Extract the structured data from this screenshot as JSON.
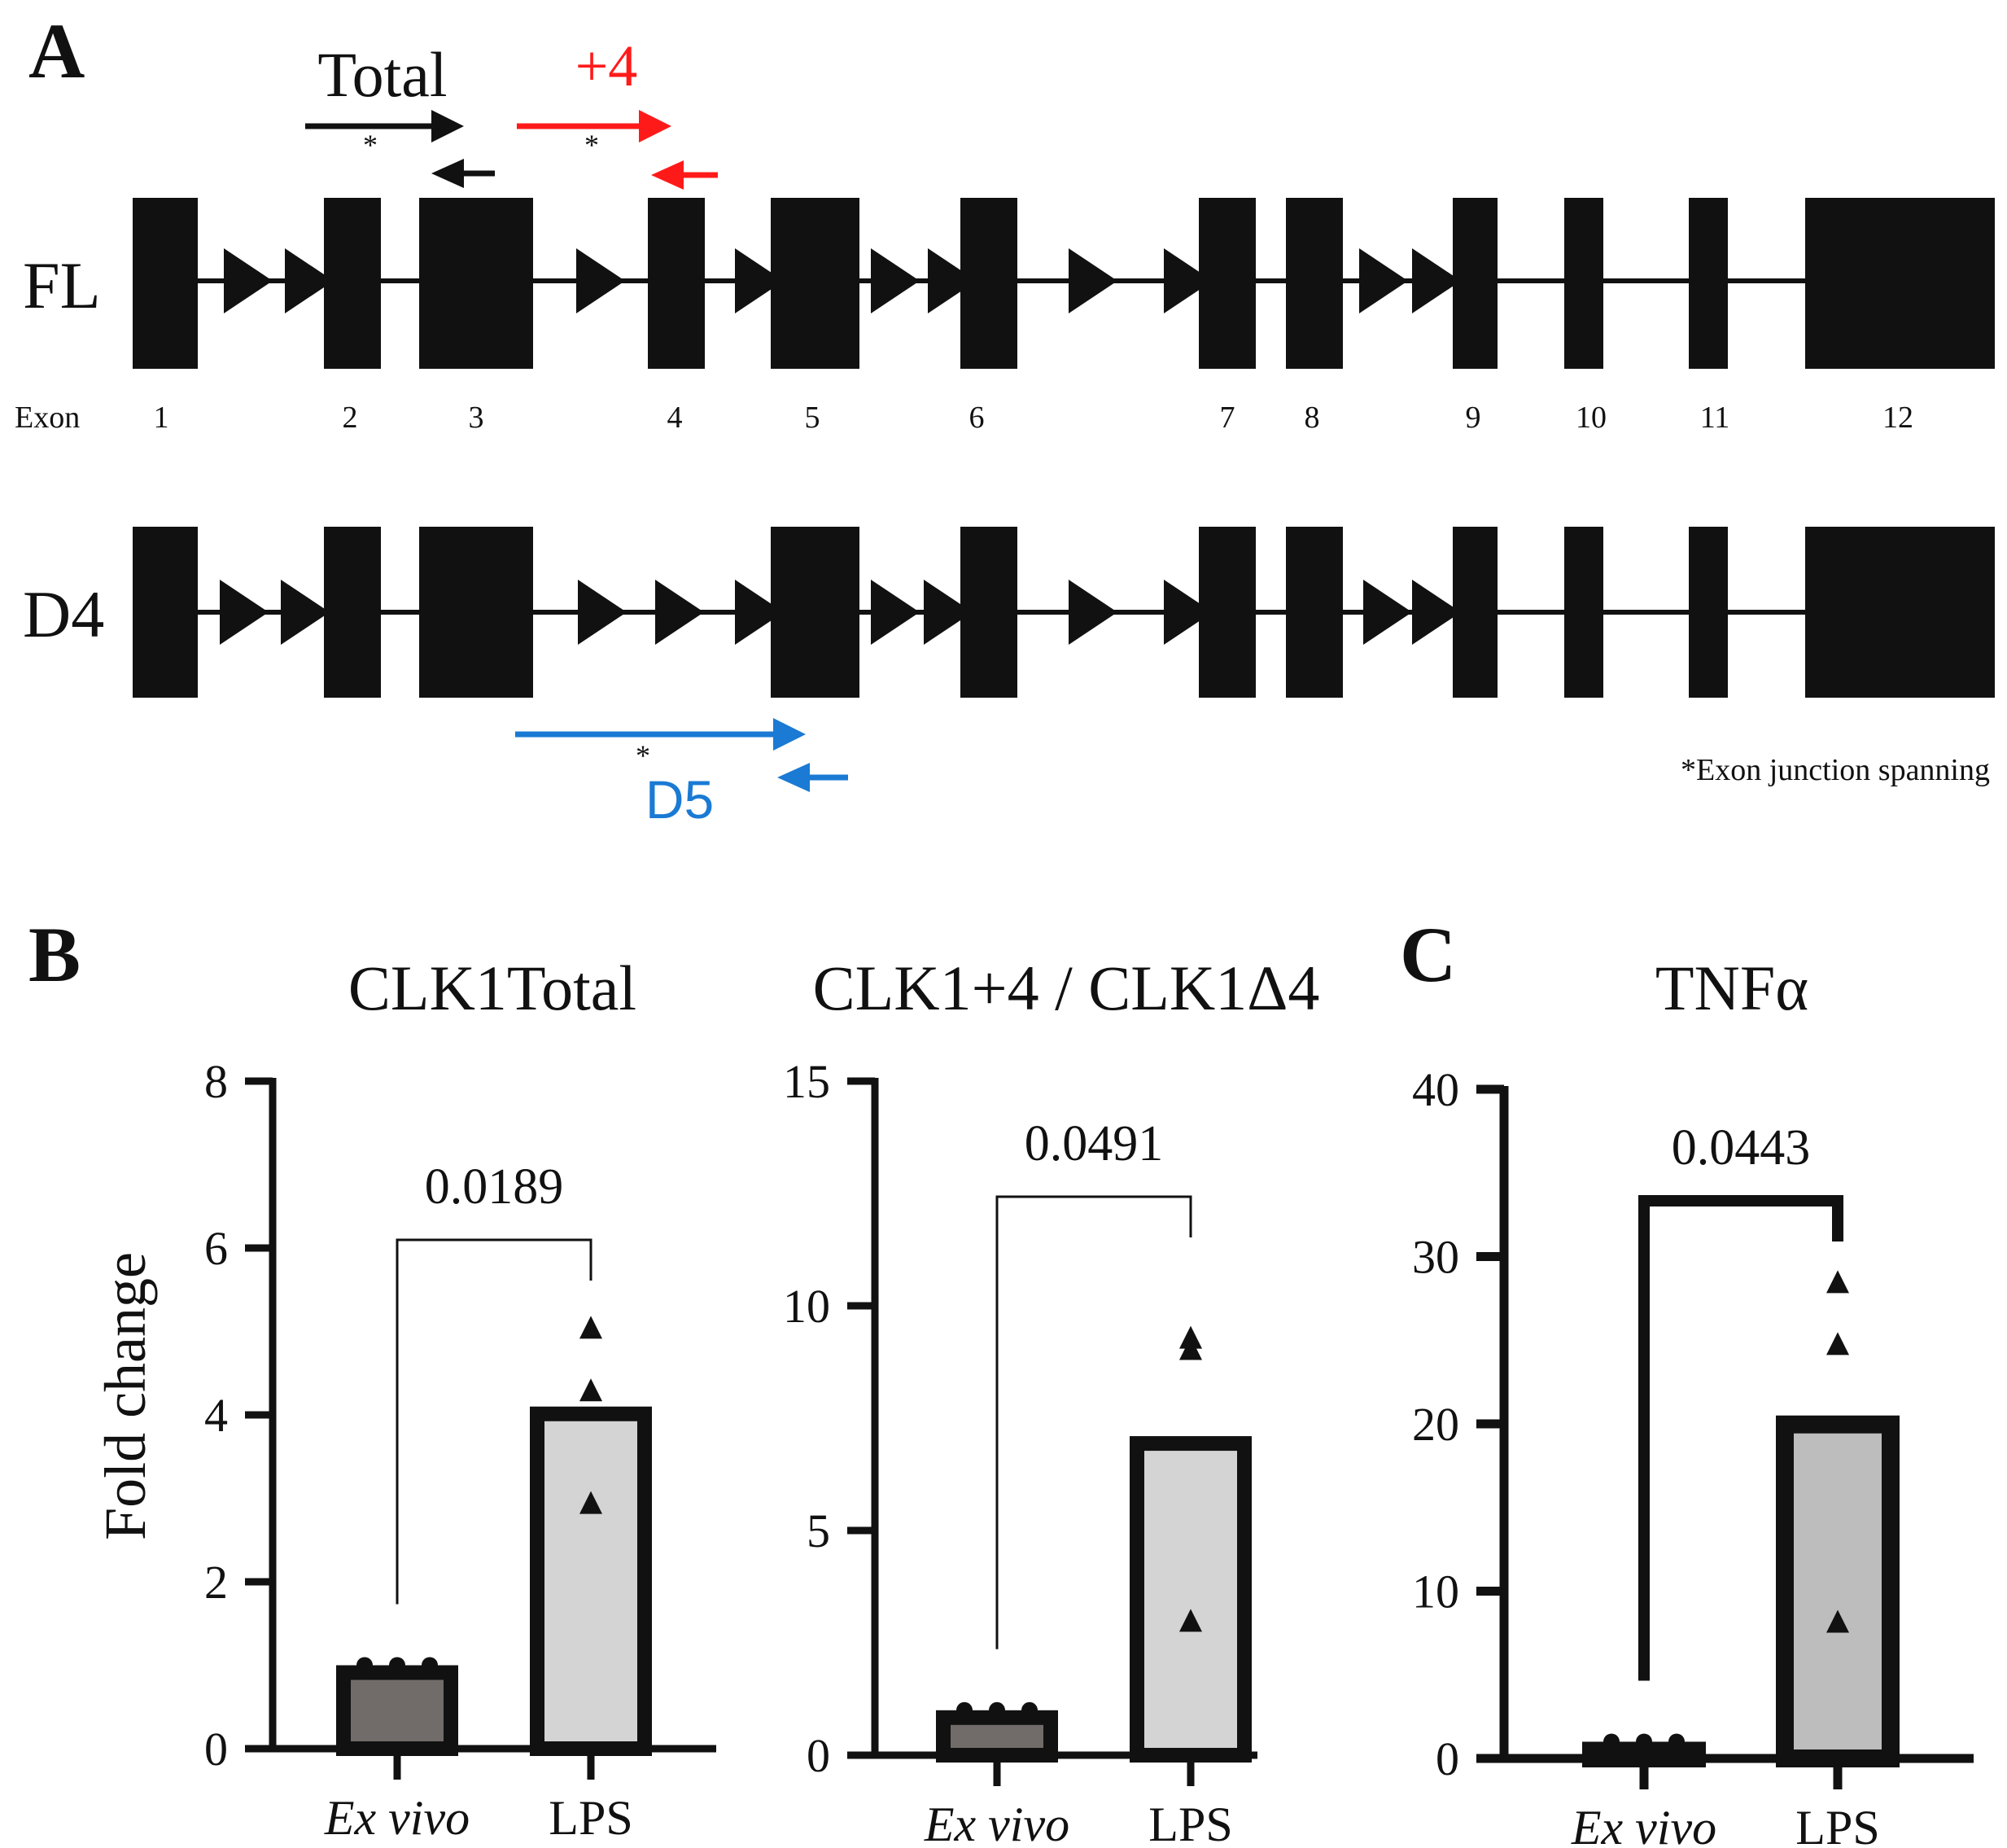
{
  "panel_a": {
    "panel_label": "A",
    "isoforms": [
      {
        "name": "FL",
        "exon_prefix": "Exon",
        "exons": [
          "1",
          "2",
          "3",
          "4",
          "5",
          "6",
          "7",
          "8",
          "9",
          "10",
          "11",
          "12"
        ]
      },
      {
        "name": "D4",
        "skipped_exon": "4"
      }
    ],
    "primers": [
      {
        "label": "Total",
        "marker": "*",
        "color": "#111111"
      },
      {
        "label": "+4",
        "marker": "*",
        "color": "#ff1a1a"
      },
      {
        "label": "D5",
        "marker": "*",
        "color": "#1a7ad4"
      }
    ],
    "footnote": "*Exon junction spanning"
  },
  "panel_labels": {
    "b": "B",
    "c": "C"
  },
  "chart_data": [
    {
      "type": "bar",
      "title": "CLK1Total",
      "ylabel": "Fold change",
      "xlabel": "",
      "categories": [
        "Ex vivo",
        "LPS"
      ],
      "values": [
        1.0,
        4.1
      ],
      "points": [
        [
          1.0,
          1.0,
          1.0
        ],
        [
          5.05,
          4.3,
          2.95
        ]
      ],
      "yticks": [
        "0",
        "2",
        "4",
        "6",
        "8"
      ],
      "ylim": [
        0,
        8
      ],
      "p_value": "0.0189",
      "bar_colors": [
        "#716c69",
        "#d4d4d4"
      ]
    },
    {
      "type": "bar",
      "title": "CLK1+4 / CLK1Δ4",
      "ylabel": "",
      "xlabel": "",
      "categories": [
        "Ex vivo",
        "LPS"
      ],
      "values": [
        1.0,
        7.1
      ],
      "points": [
        [
          1.0,
          1.0,
          1.0
        ],
        [
          9.3,
          9.05,
          3.0
        ]
      ],
      "yticks": [
        "0",
        "5",
        "10",
        "15"
      ],
      "ylim": [
        0,
        15
      ],
      "p_value": "0.0491",
      "bar_colors": [
        "#716c69",
        "#d4d4d4"
      ]
    },
    {
      "type": "bar",
      "title": "TNFα",
      "ylabel": "",
      "xlabel": "",
      "categories": [
        "Ex vivo",
        "LPS"
      ],
      "values": [
        1.0,
        20.5
      ],
      "points": [
        [
          1.0,
          1.0,
          1.0
        ],
        [
          28.5,
          24.8,
          8.2
        ]
      ],
      "yticks": [
        "0",
        "10",
        "20",
        "30",
        "40"
      ],
      "ylim": [
        0,
        40
      ],
      "p_value": "0.0443",
      "bar_colors": [
        "#716c69",
        "#bdbdbd"
      ]
    }
  ]
}
